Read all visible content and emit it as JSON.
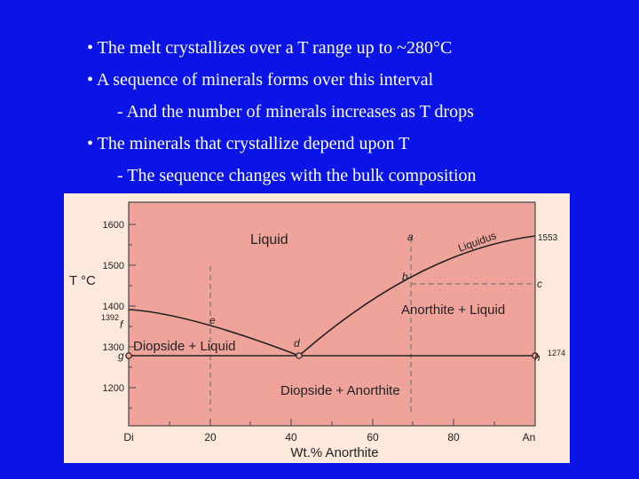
{
  "slide": {
    "bullets": [
      "• The melt crystallizes over a T range up to ~280°C",
      "• A sequence of minerals forms over this interval",
      "- And the number of minerals increases as T drops",
      "• The minerals that crystallize depend upon T",
      "- The sequence changes with the bulk composition"
    ]
  },
  "colors": {
    "background": "#0a14e6",
    "liquid_field": "#f0a39a",
    "subsolidus_field": "#f0a39a",
    "panel": "#fde9dc"
  },
  "diagram": {
    "y_axis_label": "T °C",
    "x_axis_label": "Wt.% Anorthite",
    "y_ticks": [
      "1600",
      "1500",
      "1400",
      "1300",
      "1200"
    ],
    "x_ticks": [
      "Di",
      "20",
      "40",
      "60",
      "80",
      "An"
    ],
    "fields": {
      "liquid": "Liquid",
      "diopside_liquid": "Diopside + Liquid",
      "anorthite_liquid": "Anorthite + Liquid",
      "diopside_anorthite": "Diopside + Anorthite"
    },
    "liquidus_label": "Liquidus",
    "points": {
      "a": "a",
      "b": "b",
      "c": "c",
      "d": "d",
      "e": "e",
      "f": "f",
      "g": "g",
      "h": "h"
    },
    "melting_points": {
      "diopside": "1392",
      "anorthite": "1553",
      "eutectic": "1274"
    }
  }
}
